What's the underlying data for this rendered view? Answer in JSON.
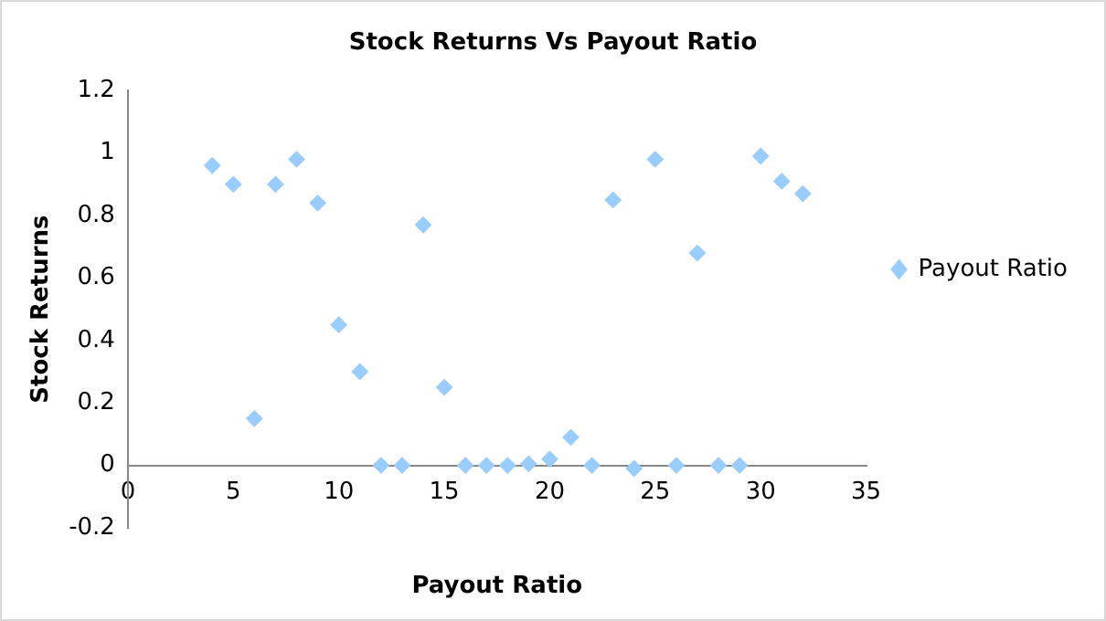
{
  "chart_data": {
    "type": "scatter",
    "title": "Stock Returns Vs Payout Ratio",
    "xlabel": "Payout Ratio",
    "ylabel": "Stock Returns",
    "series": [
      {
        "name": "Payout Ratio",
        "color": "#99ccff",
        "x": [
          4,
          5,
          6,
          7,
          8,
          9,
          10,
          11,
          12,
          13,
          14,
          15,
          16,
          17,
          18,
          19,
          20,
          21,
          22,
          23,
          24,
          25,
          26,
          27,
          28,
          29,
          30,
          31,
          32
        ],
        "values": [
          0.96,
          0.9,
          0.15,
          0.9,
          0.98,
          0.84,
          0.45,
          0.3,
          0,
          0,
          0.77,
          0.25,
          0,
          0,
          0,
          0.005,
          0.02,
          0.09,
          0,
          0.85,
          -0.01,
          0.98,
          0,
          0.68,
          0,
          0,
          0.99,
          0.91,
          0.87
        ]
      }
    ],
    "xlim": [
      0,
      35
    ],
    "xticks": [
      0,
      5,
      10,
      15,
      20,
      25,
      30,
      35
    ],
    "ylim": [
      -0.2,
      1.2
    ],
    "yticks": [
      -0.2,
      0,
      0.2,
      0.4,
      0.6,
      0.8,
      1,
      1.2
    ],
    "grid": false,
    "legend": "right",
    "marker": "diamond"
  }
}
